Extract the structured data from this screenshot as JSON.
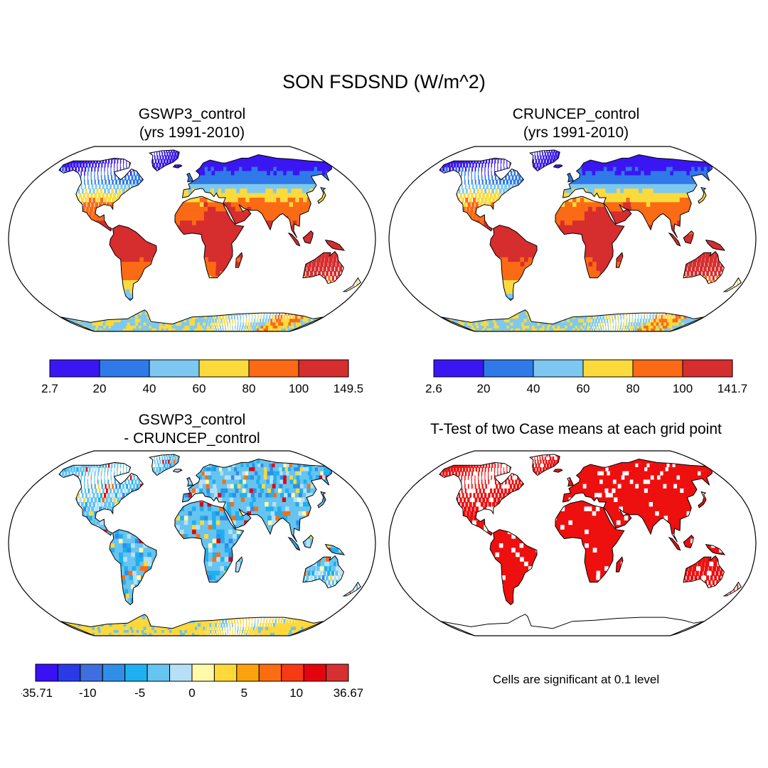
{
  "title": "SON FSDSND (W/m^2)",
  "panels": {
    "a": {
      "title_line1": "GSWP3_control",
      "title_line2": "(yrs 1991-2010)"
    },
    "b": {
      "title_line1": "CRUNCEP_control",
      "title_line2": "(yrs 1991-2010)"
    },
    "c": {
      "title_line1": "GSWP3_control",
      "title_line2": "- CRUNCEP_control"
    },
    "d": {
      "title_line1": "T-Test of two Case means at each grid point",
      "note": "Cells are significant at 0.1 level"
    }
  },
  "colorbars": {
    "a": {
      "labels": [
        "2.7",
        "20",
        "40",
        "60",
        "80",
        "100",
        "149.5"
      ],
      "colors": [
        "#3a16f2",
        "#2f7ae8",
        "#7cc8f0",
        "#fbda3c",
        "#fb6a14",
        "#d62d2e"
      ]
    },
    "b": {
      "labels": [
        "2.6",
        "20",
        "40",
        "60",
        "80",
        "100",
        "141.7"
      ],
      "colors": [
        "#3a16f2",
        "#2f7ae8",
        "#7cc8f0",
        "#fbda3c",
        "#fb6a14",
        "#d62d2e"
      ]
    },
    "c": {
      "labels": [
        "-35.71",
        "-10",
        "-5",
        "0",
        "5",
        "10",
        "36.67"
      ],
      "colors": [
        "#3a10f5",
        "#2a3ae8",
        "#3e6ee0",
        "#2f8ee8",
        "#1eb0f0",
        "#66c4f0",
        "#b5e0f8",
        "#fffaa8",
        "#ffd83a",
        "#fba30d",
        "#fb6d0f",
        "#f73a14",
        "#e3040f",
        "#d63030"
      ]
    }
  },
  "colors": {
    "land_mask": "#ffffff",
    "significant": "#ee0f0f"
  }
}
